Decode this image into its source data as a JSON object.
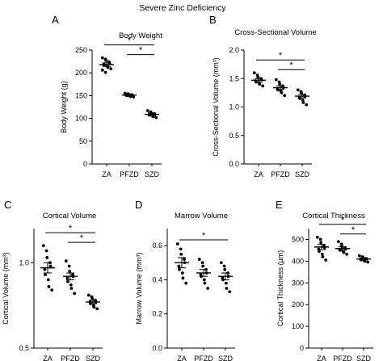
{
  "figure_title": "Severe Zinc Deficiency",
  "chart_data": [
    {
      "type": "scatter",
      "panel": "A",
      "title": "Body Weight",
      "ylabel": "Body Weight (g)",
      "categories": [
        "ZA",
        "PFZD",
        "SZD"
      ],
      "ylim": [
        0,
        250
      ],
      "yticks": [
        "0",
        "50",
        "100",
        "150",
        "200",
        "250"
      ],
      "yticks_values": [
        0,
        50,
        100,
        150,
        200,
        250
      ],
      "means": [
        218,
        151,
        109
      ],
      "sem": [
        4,
        2,
        3
      ],
      "points": [
        [
          233,
          230,
          227,
          224,
          221,
          219,
          217,
          215,
          212,
          209,
          206,
          201
        ],
        [
          155,
          154,
          153,
          152,
          151,
          151,
          150,
          149,
          148,
          147
        ],
        [
          117,
          114,
          112,
          110,
          109,
          108,
          107,
          106,
          104,
          102
        ]
      ],
      "significance": [
        {
          "from": 0,
          "to": 2,
          "label": "*"
        },
        {
          "from": 1,
          "to": 2,
          "label": "*"
        }
      ]
    },
    {
      "type": "scatter",
      "panel": "B",
      "title": "Cross-Sectional Volume",
      "ylabel": "Cross-Sectional Volume (mm³)",
      "categories": [
        "ZA",
        "PFZD",
        "SZD"
      ],
      "ylim": [
        0,
        2.0
      ],
      "yticks": [
        "0.0",
        "0.5",
        "1.0",
        "1.5",
        "2.0"
      ],
      "yticks_values": [
        0,
        0.5,
        1.0,
        1.5,
        2.0
      ],
      "means": [
        1.47,
        1.34,
        1.19
      ],
      "sem": [
        0.03,
        0.03,
        0.03
      ],
      "points": [
        [
          1.6,
          1.56,
          1.53,
          1.5,
          1.48,
          1.46,
          1.44,
          1.42,
          1.4,
          1.37
        ],
        [
          1.48,
          1.44,
          1.4,
          1.37,
          1.34,
          1.32,
          1.3,
          1.28,
          1.25,
          1.2
        ],
        [
          1.3,
          1.27,
          1.24,
          1.21,
          1.19,
          1.17,
          1.15,
          1.12,
          1.08,
          1.04
        ]
      ],
      "significance": [
        {
          "from": 0,
          "to": 2,
          "label": "*"
        },
        {
          "from": 1,
          "to": 2,
          "label": "*"
        }
      ]
    },
    {
      "type": "scatter",
      "panel": "C",
      "title": "Cortical Volume",
      "ylabel": "Cortical Volume (mm³)",
      "categories": [
        "ZA",
        "PFZD",
        "SZD"
      ],
      "ylim": [
        0.5,
        1.2
      ],
      "yticks": [
        "0.5",
        "1.0"
      ],
      "yticks_values": [
        0.5,
        1.0
      ],
      "means": [
        0.97,
        0.92,
        0.77
      ],
      "sem": [
        0.03,
        0.02,
        0.01
      ],
      "points": [
        [
          1.1,
          1.07,
          1.03,
          1.0,
          0.98,
          0.96,
          0.93,
          0.9,
          0.86,
          0.84
        ],
        [
          1.01,
          0.98,
          0.95,
          0.93,
          0.92,
          0.91,
          0.89,
          0.87,
          0.85,
          0.82
        ],
        [
          0.81,
          0.8,
          0.79,
          0.78,
          0.77,
          0.77,
          0.76,
          0.75,
          0.74,
          0.73
        ]
      ],
      "significance": [
        {
          "from": 0,
          "to": 2,
          "label": "*"
        },
        {
          "from": 1,
          "to": 2,
          "label": "*"
        }
      ]
    },
    {
      "type": "scatter",
      "panel": "D",
      "title": "Marrow Volume",
      "ylabel": "Marrow Volume (mm³)",
      "categories": [
        "ZA",
        "PFZD",
        "SZD"
      ],
      "ylim": [
        0,
        0.7
      ],
      "yticks": [
        "0.0",
        "0.2",
        "0.4",
        "0.6"
      ],
      "yticks_values": [
        0,
        0.2,
        0.4,
        0.6
      ],
      "means": [
        0.5,
        0.44,
        0.42
      ],
      "sem": [
        0.03,
        0.02,
        0.02
      ],
      "points": [
        [
          0.61,
          0.58,
          0.55,
          0.52,
          0.5,
          0.48,
          0.46,
          0.44,
          0.41,
          0.38
        ],
        [
          0.52,
          0.5,
          0.48,
          0.46,
          0.44,
          0.43,
          0.42,
          0.4,
          0.38,
          0.35
        ],
        [
          0.5,
          0.48,
          0.46,
          0.44,
          0.42,
          0.41,
          0.4,
          0.38,
          0.35,
          0.33
        ]
      ],
      "significance": [
        {
          "from": 0,
          "to": 2,
          "label": "*"
        }
      ]
    },
    {
      "type": "scatter",
      "panel": "E",
      "title": "Cortical Thickness",
      "ylabel": "Cortical Thickness (μm)",
      "categories": [
        "ZA",
        "PFZD",
        "SZD"
      ],
      "ylim": [
        0,
        550
      ],
      "yticks": [
        "0",
        "100",
        "200",
        "300",
        "400",
        "500"
      ],
      "yticks_values": [
        0,
        100,
        200,
        300,
        400,
        500
      ],
      "means": [
        465,
        458,
        410
      ],
      "sem": [
        12,
        8,
        5
      ],
      "points": [
        [
          510,
          500,
          485,
          470,
          462,
          455,
          445,
          432,
          420,
          405
        ],
        [
          490,
          478,
          468,
          462,
          458,
          454,
          450,
          445,
          440,
          432
        ],
        [
          425,
          420,
          416,
          412,
          410,
          408,
          406,
          403,
          400,
          396
        ]
      ],
      "significance": [
        {
          "from": 0,
          "to": 2,
          "label": "*"
        },
        {
          "from": 1,
          "to": 2,
          "label": "*"
        }
      ]
    }
  ]
}
